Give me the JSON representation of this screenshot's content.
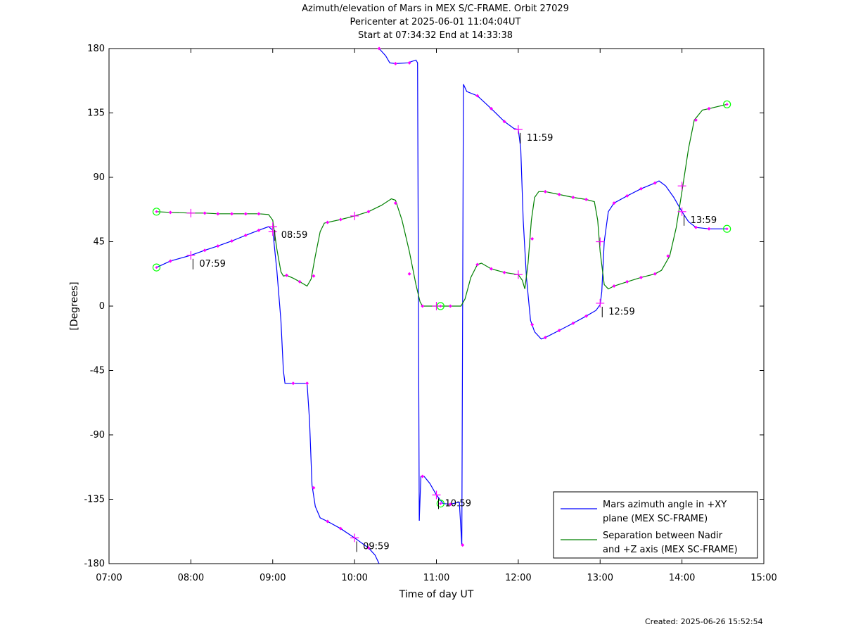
{
  "header": {
    "title_line1": "Azimuth/elevation of Mars in MEX S/C-FRAME.  Orbit 27029",
    "title_line2": "Pericenter at 2025-06-01 11:04:04UT",
    "title_line3": "Start at 07:34:32 End at 14:33:38"
  },
  "footer": {
    "created": "Created: 2025-06-26 15:52:54"
  },
  "chart_data": {
    "type": "line",
    "xlabel": "Time of day UT",
    "ylabel": "[Degrees]",
    "xlim": [
      7.0,
      15.0
    ],
    "ylim": [
      -180,
      180
    ],
    "x_ticks": [
      7,
      8,
      9,
      10,
      11,
      12,
      13,
      14,
      15
    ],
    "x_tick_labels": [
      "07:00",
      "08:00",
      "09:00",
      "10:00",
      "11:00",
      "12:00",
      "13:00",
      "14:00",
      "15:00"
    ],
    "y_ticks": [
      180,
      135,
      90,
      45,
      0,
      -45,
      -90,
      -135,
      -180
    ],
    "y_tick_labels": [
      "180",
      "135",
      "90",
      "45",
      "0",
      "-45",
      "-90",
      "-135",
      "-180"
    ],
    "grid": false,
    "legend_position": "bottom-right",
    "colors": {
      "azimuth": "#0000ff",
      "separation": "#008000",
      "markers": "#ff00ff",
      "endpoints": "#00ff00"
    },
    "series": [
      {
        "name": "Mars azimuth angle in +XY plane (MEX SC-FRAME)",
        "legend_lines": [
          "Mars azimuth angle in +XY",
          "plane (MEX SC-FRAME)"
        ],
        "color": "#0000ff",
        "segments": [
          [
            [
              7.58,
              27
            ],
            [
              7.75,
              31.5
            ],
            [
              8.0,
              35.5
            ],
            [
              8.17,
              39
            ],
            [
              8.33,
              42
            ],
            [
              8.5,
              45.5
            ],
            [
              8.67,
              49.5
            ],
            [
              8.83,
              53
            ],
            [
              8.95,
              55.5
            ],
            [
              9.0,
              53
            ],
            [
              9.05,
              25
            ],
            [
              9.1,
              -10
            ],
            [
              9.13,
              -45
            ],
            [
              9.15,
              -54
            ],
            [
              9.25,
              -54
            ],
            [
              9.35,
              -54
            ],
            [
              9.42,
              -54
            ],
            [
              9.45,
              -80
            ],
            [
              9.48,
              -125
            ],
            [
              9.52,
              -140
            ],
            [
              9.58,
              -148
            ],
            [
              9.67,
              -150.5
            ],
            [
              9.83,
              -155.5
            ],
            [
              10.0,
              -162
            ],
            [
              10.17,
              -169
            ],
            [
              10.25,
              -174
            ],
            [
              10.3,
              -180
            ]
          ],
          [
            [
              10.3,
              180
            ],
            [
              10.38,
              175
            ],
            [
              10.43,
              170
            ],
            [
              10.5,
              169.5
            ],
            [
              10.65,
              170
            ],
            [
              10.75,
              172
            ],
            [
              10.77,
              170
            ],
            [
              10.79,
              -150
            ]
          ],
          [
            [
              10.79,
              -150
            ],
            [
              10.81,
              -119
            ],
            [
              10.85,
              -119
            ],
            [
              10.92,
              -124
            ],
            [
              11.0,
              -132
            ],
            [
              11.08,
              -138
            ],
            [
              11.17,
              -138.5
            ],
            [
              11.28,
              -137
            ],
            [
              11.31,
              -167
            ]
          ],
          [
            [
              11.31,
              -167
            ],
            [
              11.33,
              155
            ],
            [
              11.37,
              150
            ],
            [
              11.5,
              147
            ],
            [
              11.67,
              138
            ],
            [
              11.83,
              129
            ],
            [
              11.95,
              124
            ],
            [
              12.0,
              123.5
            ],
            [
              12.03,
              110
            ],
            [
              12.06,
              60
            ],
            [
              12.1,
              20
            ],
            [
              12.15,
              -10
            ],
            [
              12.2,
              -18
            ],
            [
              12.28,
              -23
            ],
            [
              12.33,
              -22
            ],
            [
              12.5,
              -17
            ],
            [
              12.67,
              -12
            ],
            [
              12.83,
              -7
            ],
            [
              12.95,
              -3
            ],
            [
              13.0,
              1
            ],
            [
              13.02,
              10
            ],
            [
              13.05,
              45
            ],
            [
              13.1,
              66
            ],
            [
              13.17,
              72
            ],
            [
              13.33,
              77
            ],
            [
              13.5,
              82
            ],
            [
              13.67,
              86
            ],
            [
              13.72,
              87.5
            ],
            [
              13.8,
              84
            ],
            [
              13.9,
              76
            ],
            [
              14.0,
              66
            ],
            [
              14.08,
              59
            ],
            [
              14.17,
              55
            ],
            [
              14.33,
              54
            ],
            [
              14.55,
              54
            ]
          ]
        ]
      },
      {
        "name": "Separation between Nadir and +Z axis (MEX SC-FRAME)",
        "legend_lines": [
          "Separation between Nadir",
          "and +Z axis (MEX SC-FRAME)"
        ],
        "color": "#008000",
        "segments": [
          [
            [
              7.58,
              66
            ],
            [
              7.75,
              65.5
            ],
            [
              8.0,
              65
            ],
            [
              8.17,
              65
            ],
            [
              8.33,
              64.5
            ],
            [
              8.5,
              64.5
            ],
            [
              8.67,
              64.5
            ],
            [
              8.83,
              64.5
            ],
            [
              8.95,
              64
            ],
            [
              9.0,
              60
            ],
            [
              9.05,
              40
            ],
            [
              9.1,
              24
            ],
            [
              9.13,
              21
            ],
            [
              9.17,
              21.5
            ],
            [
              9.25,
              19.5
            ],
            [
              9.33,
              17
            ],
            [
              9.42,
              14
            ],
            [
              9.47,
              19
            ],
            [
              9.52,
              35
            ],
            [
              9.58,
              52
            ],
            [
              9.63,
              58
            ],
            [
              9.67,
              58.5
            ],
            [
              9.83,
              60.5
            ],
            [
              10.0,
              63
            ],
            [
              10.17,
              66
            ],
            [
              10.33,
              70.5
            ],
            [
              10.45,
              75
            ],
            [
              10.5,
              74
            ],
            [
              10.58,
              60
            ],
            [
              10.67,
              38
            ],
            [
              10.75,
              15
            ],
            [
              10.8,
              3
            ],
            [
              10.83,
              0
            ],
            [
              11.0,
              0
            ],
            [
              11.17,
              0
            ],
            [
              11.3,
              0
            ],
            [
              11.35,
              5
            ],
            [
              11.42,
              20
            ],
            [
              11.5,
              29
            ],
            [
              11.55,
              30
            ],
            [
              11.67,
              26
            ],
            [
              11.83,
              23.5
            ],
            [
              12.0,
              22
            ],
            [
              12.05,
              18
            ],
            [
              12.08,
              12
            ],
            [
              12.12,
              30
            ],
            [
              12.16,
              60
            ],
            [
              12.2,
              76
            ],
            [
              12.25,
              80
            ],
            [
              12.33,
              80
            ],
            [
              12.5,
              78
            ],
            [
              12.67,
              76
            ],
            [
              12.83,
              74.5
            ],
            [
              12.93,
              73
            ],
            [
              12.97,
              60
            ],
            [
              13.0,
              38
            ],
            [
              13.05,
              15
            ],
            [
              13.1,
              12
            ],
            [
              13.17,
              14
            ],
            [
              13.33,
              17
            ],
            [
              13.5,
              20
            ],
            [
              13.67,
              22.5
            ],
            [
              13.75,
              25
            ],
            [
              13.85,
              35
            ],
            [
              13.93,
              55
            ],
            [
              14.0,
              80
            ],
            [
              14.08,
              110
            ],
            [
              14.15,
              130
            ],
            [
              14.25,
              137
            ],
            [
              14.33,
              138
            ],
            [
              14.55,
              141
            ]
          ]
        ]
      }
    ],
    "markers": [
      [
        7.75,
        31.5
      ],
      [
        8.17,
        39
      ],
      [
        8.33,
        42
      ],
      [
        8.5,
        45.5
      ],
      [
        8.67,
        49.5
      ],
      [
        8.83,
        53
      ],
      [
        9.25,
        -54
      ],
      [
        9.42,
        -54
      ],
      [
        9.5,
        -127
      ],
      [
        9.67,
        -150.5
      ],
      [
        9.83,
        -155.5
      ],
      [
        10.17,
        -169
      ],
      [
        10.3,
        180
      ],
      [
        10.5,
        169.5
      ],
      [
        10.67,
        170
      ],
      [
        10.83,
        -119
      ],
      [
        11.17,
        -138.5
      ],
      [
        11.32,
        -167
      ],
      [
        11.5,
        147
      ],
      [
        11.67,
        138
      ],
      [
        11.83,
        129
      ],
      [
        12.17,
        -13
      ],
      [
        12.33,
        -22
      ],
      [
        12.5,
        -17
      ],
      [
        12.67,
        -12
      ],
      [
        12.83,
        -7
      ],
      [
        13.17,
        72
      ],
      [
        13.33,
        77
      ],
      [
        13.5,
        82
      ],
      [
        13.67,
        86
      ],
      [
        14.17,
        55
      ],
      [
        14.33,
        54
      ],
      [
        7.75,
        65.5
      ],
      [
        8.17,
        65
      ],
      [
        8.33,
        64.5
      ],
      [
        8.5,
        64.5
      ],
      [
        8.67,
        64.5
      ],
      [
        8.83,
        64.5
      ],
      [
        9.17,
        21.5
      ],
      [
        9.33,
        17
      ],
      [
        9.5,
        21
      ],
      [
        9.67,
        58.5
      ],
      [
        9.83,
        60.5
      ],
      [
        10.17,
        66
      ],
      [
        10.5,
        72
      ],
      [
        10.67,
        22.5
      ],
      [
        10.83,
        0
      ],
      [
        11.17,
        0
      ],
      [
        11.5,
        29
      ],
      [
        11.67,
        26
      ],
      [
        11.83,
        23.5
      ],
      [
        12.17,
        47
      ],
      [
        12.33,
        80
      ],
      [
        12.5,
        78
      ],
      [
        12.67,
        76
      ],
      [
        12.83,
        74.5
      ],
      [
        13.17,
        14
      ],
      [
        13.33,
        17
      ],
      [
        13.5,
        20
      ],
      [
        13.67,
        22.5
      ],
      [
        13.83,
        35
      ],
      [
        14.17,
        130
      ],
      [
        14.33,
        138
      ]
    ],
    "crosses": [
      [
        8.0,
        35.5
      ],
      [
        9.0,
        55.5
      ],
      [
        10.0,
        -162
      ],
      [
        11.0,
        -132
      ],
      [
        12.0,
        123.5
      ],
      [
        13.0,
        2
      ],
      [
        14.0,
        66
      ],
      [
        8.0,
        65
      ],
      [
        9.0,
        52
      ],
      [
        10.0,
        63
      ],
      [
        11.0,
        0
      ],
      [
        12.0,
        22
      ],
      [
        13.0,
        45
      ],
      [
        14.0,
        84
      ]
    ],
    "endpoint_circles": [
      [
        7.58,
        27
      ],
      [
        7.58,
        66
      ],
      [
        14.55,
        54
      ],
      [
        14.55,
        141
      ],
      [
        11.05,
        0
      ],
      [
        11.05,
        -138
      ]
    ],
    "annotations": [
      {
        "label": "07:59",
        "x": 8.0,
        "y": 35.5
      },
      {
        "label": "08:59",
        "x": 9.0,
        "y": 55.5
      },
      {
        "label": "09:59",
        "x": 10.0,
        "y": -162
      },
      {
        "label": "10:59",
        "x": 11.0,
        "y": -132
      },
      {
        "label": "11:59",
        "x": 12.0,
        "y": 123.5
      },
      {
        "label": "12:59",
        "x": 13.0,
        "y": 2
      },
      {
        "label": "13:59",
        "x": 14.0,
        "y": 66
      }
    ]
  }
}
